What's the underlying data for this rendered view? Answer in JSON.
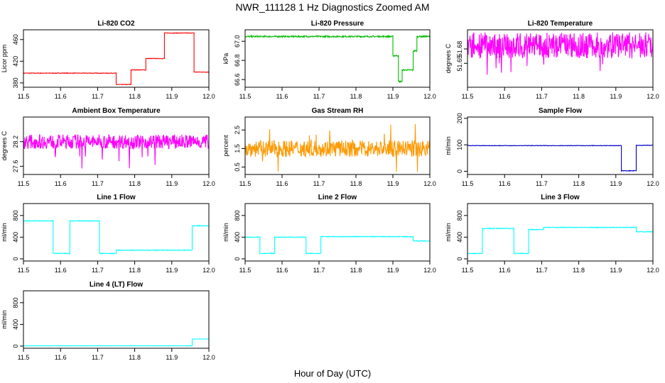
{
  "figure": {
    "title": "NWR_111128  1 Hz Diagnostics Zoomed AM",
    "xlabel": "Hour of Day (UTC)"
  },
  "chart_data": [
    {
      "id": "co2",
      "type": "line",
      "title": "Li-820 CO2",
      "ylabel": "Licor ppm",
      "color": "#ff0000",
      "noise": 1,
      "xlim": [
        11.5,
        12.0
      ],
      "ylim": [
        372,
        478
      ],
      "xticks": [
        "11.5",
        "11.6",
        "11.7",
        "11.8",
        "11.9",
        "12.0"
      ],
      "yticks": [
        380,
        420,
        460
      ],
      "ytick_labels": [
        "380",
        "420",
        "460"
      ],
      "segments": [
        [
          11.5,
          11.75,
          398
        ],
        [
          11.75,
          11.79,
          377
        ],
        [
          11.79,
          11.83,
          404
        ],
        [
          11.83,
          11.88,
          425
        ],
        [
          11.88,
          11.96,
          472
        ],
        [
          11.96,
          12.0,
          400
        ]
      ]
    },
    {
      "id": "pressure",
      "type": "line",
      "title": "Li-820 Pressure",
      "ylabel": "kPa",
      "color": "#00bb00",
      "noise": 0.015,
      "xlim": [
        11.5,
        12.0
      ],
      "ylim": [
        66.52,
        67.12
      ],
      "xticks": [
        "11.5",
        "11.6",
        "11.7",
        "11.8",
        "11.9",
        "12.0"
      ],
      "yticks": [
        66.6,
        66.8,
        67.0
      ],
      "ytick_labels": [
        "66.6",
        "66.8",
        "67.0"
      ],
      "segments": [
        [
          11.5,
          11.9,
          67.05
        ],
        [
          11.9,
          11.915,
          66.85
        ],
        [
          11.915,
          11.925,
          66.58
        ],
        [
          11.925,
          11.955,
          66.7
        ],
        [
          11.955,
          11.965,
          66.9
        ],
        [
          11.965,
          12.0,
          67.05
        ]
      ]
    },
    {
      "id": "temperature",
      "type": "line",
      "title": "Li-820 Temperature",
      "ylabel": "degrees C",
      "color": "#ff00ff",
      "noise": 0.05,
      "xlim": [
        11.5,
        12.0
      ],
      "ylim": [
        51.6,
        51.72
      ],
      "xticks": [
        "11.5",
        "11.6",
        "11.7",
        "11.8",
        "11.9",
        "12.0"
      ],
      "yticks": [
        51.65,
        51.68
      ],
      "ytick_labels": [
        "51.65",
        "51.68"
      ],
      "segments": [
        [
          11.5,
          12.0,
          51.7
        ]
      ]
    },
    {
      "id": "ambient",
      "type": "line",
      "title": "Ambient Box Temperature",
      "ylabel": "degrees C",
      "color": "#ff00ff",
      "noise": 0.35,
      "xlim": [
        11.5,
        12.0
      ],
      "ylim": [
        27.4,
        28.8
      ],
      "xticks": [
        "11.5",
        "11.6",
        "11.7",
        "11.8",
        "11.9",
        "12.0"
      ],
      "yticks": [
        27.6,
        28.2
      ],
      "ytick_labels": [
        "27.6",
        "28.2"
      ],
      "segments": [
        [
          11.5,
          12.0,
          28.2
        ]
      ]
    },
    {
      "id": "rh",
      "type": "line",
      "title": "Gas Stream RH",
      "ylabel": "percent",
      "color": "#ff9900",
      "noise": 0.9,
      "xlim": [
        11.5,
        12.0
      ],
      "ylim": [
        0.1,
        3.2
      ],
      "xticks": [
        "11.5",
        "11.6",
        "11.7",
        "11.8",
        "11.9",
        "12.0"
      ],
      "yticks": [
        0.5,
        1.5,
        2.5
      ],
      "ytick_labels": [
        "0.5",
        "1.5",
        "2.5"
      ],
      "segments": [
        [
          11.5,
          12.0,
          1.5
        ]
      ]
    },
    {
      "id": "sampleflow",
      "type": "line",
      "title": "Sample Flow",
      "ylabel": "ml/min",
      "color": "#0000cc",
      "noise": 2,
      "xlim": [
        11.5,
        12.0
      ],
      "ylim": [
        -12,
        205
      ],
      "xticks": [
        "11.5",
        "11.6",
        "11.7",
        "11.8",
        "11.9",
        "12.0"
      ],
      "yticks": [
        0,
        100,
        200
      ],
      "ytick_labels": [
        "0",
        "100",
        "200"
      ],
      "segments": [
        [
          11.5,
          11.915,
          97
        ],
        [
          11.915,
          11.955,
          2
        ],
        [
          11.955,
          12.0,
          98
        ]
      ]
    },
    {
      "id": "line1",
      "type": "line",
      "title": "Line 1 Flow",
      "ylabel": "ml/min",
      "color": "#00ffff",
      "noise": 12,
      "xlim": [
        11.5,
        12.0
      ],
      "ylim": [
        -40,
        1020
      ],
      "xticks": [
        "11.5",
        "11.6",
        "11.7",
        "11.8",
        "11.9",
        "12.0"
      ],
      "yticks": [
        0,
        400,
        800
      ],
      "ytick_labels": [
        "0",
        "400",
        "800"
      ],
      "segments": [
        [
          11.5,
          11.58,
          700
        ],
        [
          11.58,
          11.625,
          100
        ],
        [
          11.625,
          11.705,
          700
        ],
        [
          11.705,
          11.75,
          100
        ],
        [
          11.75,
          11.955,
          160
        ],
        [
          11.955,
          12.0,
          610
        ]
      ]
    },
    {
      "id": "line2",
      "type": "line",
      "title": "Line 2 Flow",
      "ylabel": "ml/min",
      "color": "#00ffff",
      "noise": 12,
      "xlim": [
        11.5,
        12.0
      ],
      "ylim": [
        -40,
        1020
      ],
      "xticks": [
        "11.5",
        "11.6",
        "11.7",
        "11.8",
        "11.9",
        "12.0"
      ],
      "yticks": [
        0,
        400,
        800
      ],
      "ytick_labels": [
        "0",
        "400",
        "800"
      ],
      "segments": [
        [
          11.5,
          11.54,
          400
        ],
        [
          11.54,
          11.58,
          100
        ],
        [
          11.58,
          11.665,
          400
        ],
        [
          11.665,
          11.705,
          100
        ],
        [
          11.705,
          11.955,
          410
        ],
        [
          11.955,
          12.0,
          330
        ]
      ]
    },
    {
      "id": "line3",
      "type": "line",
      "title": "Line 3 Flow",
      "ylabel": "ml/min",
      "color": "#00ffff",
      "noise": 12,
      "xlim": [
        11.5,
        12.0
      ],
      "ylim": [
        -40,
        1020
      ],
      "xticks": [
        "11.5",
        "11.6",
        "11.7",
        "11.8",
        "11.9",
        "12.0"
      ],
      "yticks": [
        0,
        400,
        800
      ],
      "ytick_labels": [
        "0",
        "400",
        "800"
      ],
      "segments": [
        [
          11.5,
          11.54,
          100
        ],
        [
          11.54,
          11.625,
          560
        ],
        [
          11.625,
          11.665,
          100
        ],
        [
          11.665,
          11.705,
          540
        ],
        [
          11.705,
          11.955,
          580
        ],
        [
          11.955,
          12.0,
          500
        ]
      ]
    },
    {
      "id": "line4",
      "type": "line",
      "title": "Line 4 (LT) Flow",
      "ylabel": "ml/min",
      "color": "#00ffff",
      "noise": 4,
      "xlim": [
        11.5,
        12.0
      ],
      "ylim": [
        -40,
        1020
      ],
      "xticks": [
        "11.5",
        "11.6",
        "11.7",
        "11.8",
        "11.9",
        "12.0"
      ],
      "yticks": [
        0,
        400,
        800
      ],
      "ytick_labels": [
        "0",
        "400",
        "800"
      ],
      "segments": [
        [
          11.5,
          11.955,
          5
        ],
        [
          11.955,
          12.0,
          130
        ]
      ]
    }
  ]
}
